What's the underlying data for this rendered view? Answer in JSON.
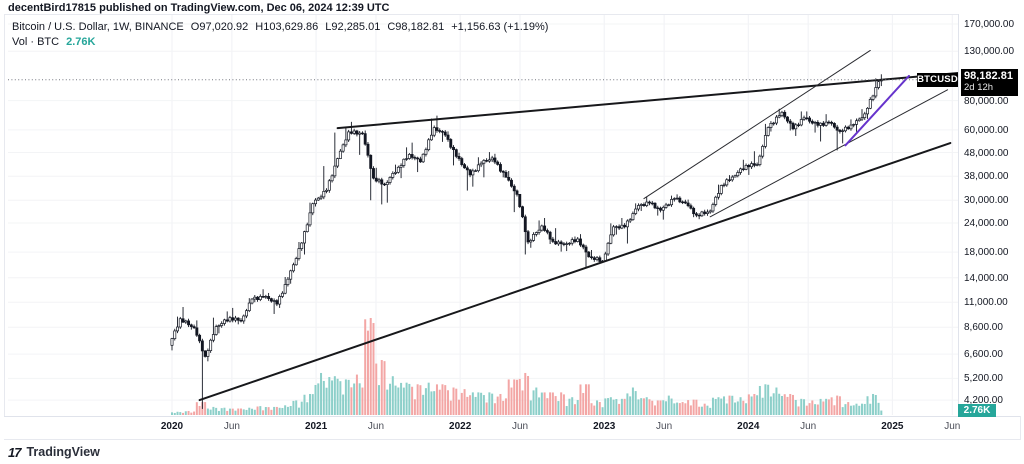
{
  "topbar": {
    "text": "decentBird17815 published on TradingView.com, Dec 06, 2024 12:39 UTC"
  },
  "legend": {
    "title": "Bitcoin / U.S. Dollar, 1W, BINANCE",
    "open": "O97,020.92",
    "high": "H103,629.86",
    "low": "L92,285.01",
    "close": "C98,182.81",
    "change": "+1,156.63 (+1.19%)",
    "volume_label": "Vol · BTC",
    "volume_value": "2.76K"
  },
  "price_scale": {
    "symbol_label": "BTCUSD",
    "last_price": "98,182.81",
    "countdown": "2d 12h",
    "volume_badge": "2.76K",
    "ticks": [
      [
        "170,000.00",
        170000
      ],
      [
        "130,000.00",
        130000
      ],
      [
        "80,000.00",
        80000
      ],
      [
        "60,000.00",
        60000
      ],
      [
        "48,000.00",
        48000
      ],
      [
        "38,000.00",
        38000
      ],
      [
        "30,000.00",
        30000
      ],
      [
        "24,000.00",
        24000
      ],
      [
        "18,000.00",
        18000
      ],
      [
        "14,000.00",
        14000
      ],
      [
        "11,000.00",
        11000
      ],
      [
        "8,600.00",
        8600
      ],
      [
        "6,600.00",
        6600
      ],
      [
        "5,200.00",
        5200
      ],
      [
        "4,200.00",
        4200
      ]
    ]
  },
  "time_axis": {
    "ticks": [
      [
        "2020",
        0,
        1
      ],
      [
        "Jun",
        21.7,
        0
      ],
      [
        "2021",
        52.2,
        1
      ],
      [
        "Jun",
        73.9,
        0
      ],
      [
        "2022",
        104.4,
        1
      ],
      [
        "Jun",
        126.1,
        0
      ],
      [
        "2023",
        156.6,
        1
      ],
      [
        "Jun",
        178.3,
        0
      ],
      [
        "2024",
        208.8,
        1
      ],
      [
        "Jun",
        230.5,
        0
      ],
      [
        "2025",
        261,
        1
      ],
      [
        "Jun",
        282.7,
        0
      ]
    ]
  },
  "footer": {
    "logo": "17",
    "brand": "TradingView"
  },
  "colors": {
    "accent_teal": "#26a69a",
    "candle": "#131722",
    "vol_up": "#8ccfc9",
    "vol_down": "#f3a6a5",
    "trendline": "#17181b",
    "purple_line": "#6633cc",
    "label_bg": "#000000",
    "grid_v": "#f0f1f5",
    "grid_h": "#f3f4f6",
    "dotted": "#73767f"
  },
  "chart_data": {
    "type": "candlestick_with_volume",
    "symbol": "BTCUSD",
    "exchange": "BINANCE",
    "interval": "1W",
    "price_scale_type": "log",
    "last_price": 98182.81,
    "current_candle": {
      "open": 97020.92,
      "high": 103629.86,
      "low": 92285.01,
      "close": 98182.81,
      "change": 1156.63,
      "change_pct": 1.19,
      "volume_k_btc": 2.76
    },
    "x_range": [
      "2020-01",
      "2025-06"
    ],
    "y_ticks": [
      170000,
      130000,
      80000,
      60000,
      48000,
      38000,
      30000,
      24000,
      18000,
      14000,
      11000,
      8600,
      6600,
      5200,
      4200
    ],
    "monthly_ohlcv": [
      [
        "2020-01",
        7200,
        9550,
        6850,
        9350,
        2
      ],
      [
        "2020-02",
        9350,
        10500,
        8400,
        8550,
        2.5
      ],
      [
        "2020-03",
        8550,
        9200,
        3850,
        6450,
        8
      ],
      [
        "2020-04",
        6450,
        9450,
        6150,
        8650,
        5
      ],
      [
        "2020-05",
        8650,
        10050,
        8100,
        9450,
        4.5
      ],
      [
        "2020-06",
        9450,
        10400,
        8850,
        9150,
        4
      ],
      [
        "2020-07",
        9150,
        11450,
        8900,
        11350,
        4.5
      ],
      [
        "2020-08",
        11350,
        12500,
        11000,
        11650,
        5.5
      ],
      [
        "2020-09",
        11650,
        12050,
        9800,
        10800,
        5
      ],
      [
        "2020-10",
        10800,
        14100,
        10400,
        13800,
        6
      ],
      [
        "2020-11",
        13800,
        19900,
        13200,
        19700,
        9
      ],
      [
        "2020-12",
        19700,
        29300,
        17600,
        29000,
        13
      ],
      [
        "2021-01",
        29000,
        42000,
        28200,
        33100,
        26
      ],
      [
        "2021-02",
        33100,
        58400,
        32300,
        45200,
        24
      ],
      [
        "2021-03",
        45200,
        61800,
        45000,
        58800,
        22
      ],
      [
        "2021-04",
        58800,
        64900,
        46900,
        57800,
        25
      ],
      [
        "2021-05",
        57800,
        59600,
        30000,
        37300,
        60
      ],
      [
        "2021-06",
        37300,
        41300,
        28800,
        35000,
        34
      ],
      [
        "2021-07",
        35000,
        42600,
        29300,
        41500,
        24
      ],
      [
        "2021-08",
        41500,
        50500,
        37300,
        47100,
        20
      ],
      [
        "2021-09",
        47100,
        52900,
        39600,
        43800,
        19
      ],
      [
        "2021-10",
        43800,
        67000,
        43300,
        61300,
        20
      ],
      [
        "2021-11",
        61300,
        69000,
        53300,
        57000,
        19
      ],
      [
        "2021-12",
        57000,
        59100,
        42300,
        46200,
        17
      ],
      [
        "2022-01",
        46200,
        47900,
        33000,
        38500,
        16
      ],
      [
        "2022-02",
        38500,
        45800,
        34300,
        43200,
        14
      ],
      [
        "2022-03",
        43200,
        48200,
        37600,
        45500,
        14
      ],
      [
        "2022-04",
        45500,
        47400,
        37600,
        37600,
        13
      ],
      [
        "2022-05",
        37600,
        40000,
        26700,
        31800,
        22
      ],
      [
        "2022-06",
        31800,
        31900,
        17600,
        19900,
        26
      ],
      [
        "2022-07",
        19900,
        24600,
        18800,
        23300,
        17
      ],
      [
        "2022-08",
        23300,
        25200,
        19500,
        20000,
        14
      ],
      [
        "2022-09",
        20000,
        22800,
        18100,
        19400,
        14
      ],
      [
        "2022-10",
        19400,
        21000,
        18200,
        20500,
        11
      ],
      [
        "2022-11",
        20500,
        21500,
        15500,
        17200,
        19
      ],
      [
        "2022-12",
        17200,
        18400,
        16300,
        16500,
        9
      ],
      [
        "2023-01",
        16500,
        23900,
        16500,
        23100,
        11
      ],
      [
        "2023-02",
        23100,
        25200,
        21400,
        23100,
        10
      ],
      [
        "2023-03",
        23100,
        29100,
        19600,
        28500,
        17
      ],
      [
        "2023-04",
        28500,
        31000,
        27000,
        29200,
        11
      ],
      [
        "2023-05",
        29200,
        29800,
        25800,
        27200,
        9
      ],
      [
        "2023-06",
        27200,
        31400,
        24800,
        30500,
        12
      ],
      [
        "2023-07",
        30500,
        31800,
        28900,
        29200,
        8
      ],
      [
        "2023-08",
        29200,
        30200,
        25400,
        25900,
        9.5
      ],
      [
        "2023-09",
        25900,
        27400,
        24900,
        27000,
        7
      ],
      [
        "2023-10",
        27000,
        35000,
        26500,
        34700,
        11
      ],
      [
        "2023-11",
        34700,
        38400,
        34100,
        37700,
        12
      ],
      [
        "2023-12",
        37700,
        44700,
        37600,
        42300,
        11
      ],
      [
        "2024-01",
        42300,
        48600,
        38500,
        42600,
        13
      ],
      [
        "2024-02",
        42600,
        63600,
        41900,
        61400,
        19
      ],
      [
        "2024-03",
        61400,
        73800,
        59000,
        71300,
        17
      ],
      [
        "2024-04",
        71300,
        72800,
        59600,
        60600,
        13
      ],
      [
        "2024-05",
        60600,
        71900,
        56500,
        67500,
        10
      ],
      [
        "2024-06",
        67500,
        71900,
        58400,
        62700,
        9
      ],
      [
        "2024-07",
        62700,
        70000,
        53500,
        64600,
        10
      ],
      [
        "2024-08",
        64600,
        65600,
        49000,
        59000,
        12
      ],
      [
        "2024-09",
        59000,
        66500,
        52500,
        63300,
        8
      ],
      [
        "2024-10",
        63300,
        73600,
        58900,
        70200,
        7
      ],
      [
        "2024-11",
        70200,
        99600,
        66800,
        96400,
        13
      ],
      [
        "2024-12",
        97020.92,
        103629.86,
        92285.01,
        98182.81,
        2.76
      ]
    ],
    "trendlines": [
      {
        "name": "long-term-support",
        "w1": 10,
        "p1": 4200,
        "w2": 282,
        "p2": 52700,
        "width": 2,
        "style": "solid",
        "color": "#17181b"
      },
      {
        "name": "multi-year-resistance",
        "w1": 60,
        "p1": 61000,
        "w2": 285,
        "p2": 105000,
        "width": 2,
        "style": "solid",
        "color": "#17181b"
      },
      {
        "name": "channel-upper",
        "w1": 171,
        "p1": 30500,
        "w2": 253,
        "p2": 131000,
        "width": 1,
        "style": "solid",
        "color": "#2a2b30"
      },
      {
        "name": "channel-lower",
        "w1": 195,
        "p1": 25500,
        "w2": 281,
        "p2": 89000,
        "width": 1,
        "style": "solid",
        "color": "#2a2b30"
      },
      {
        "name": "rally-trendline",
        "w1": 244,
        "p1": 51500,
        "w2": 267,
        "p2": 102000,
        "width": 2,
        "style": "solid",
        "color": "#6633cc"
      }
    ]
  }
}
